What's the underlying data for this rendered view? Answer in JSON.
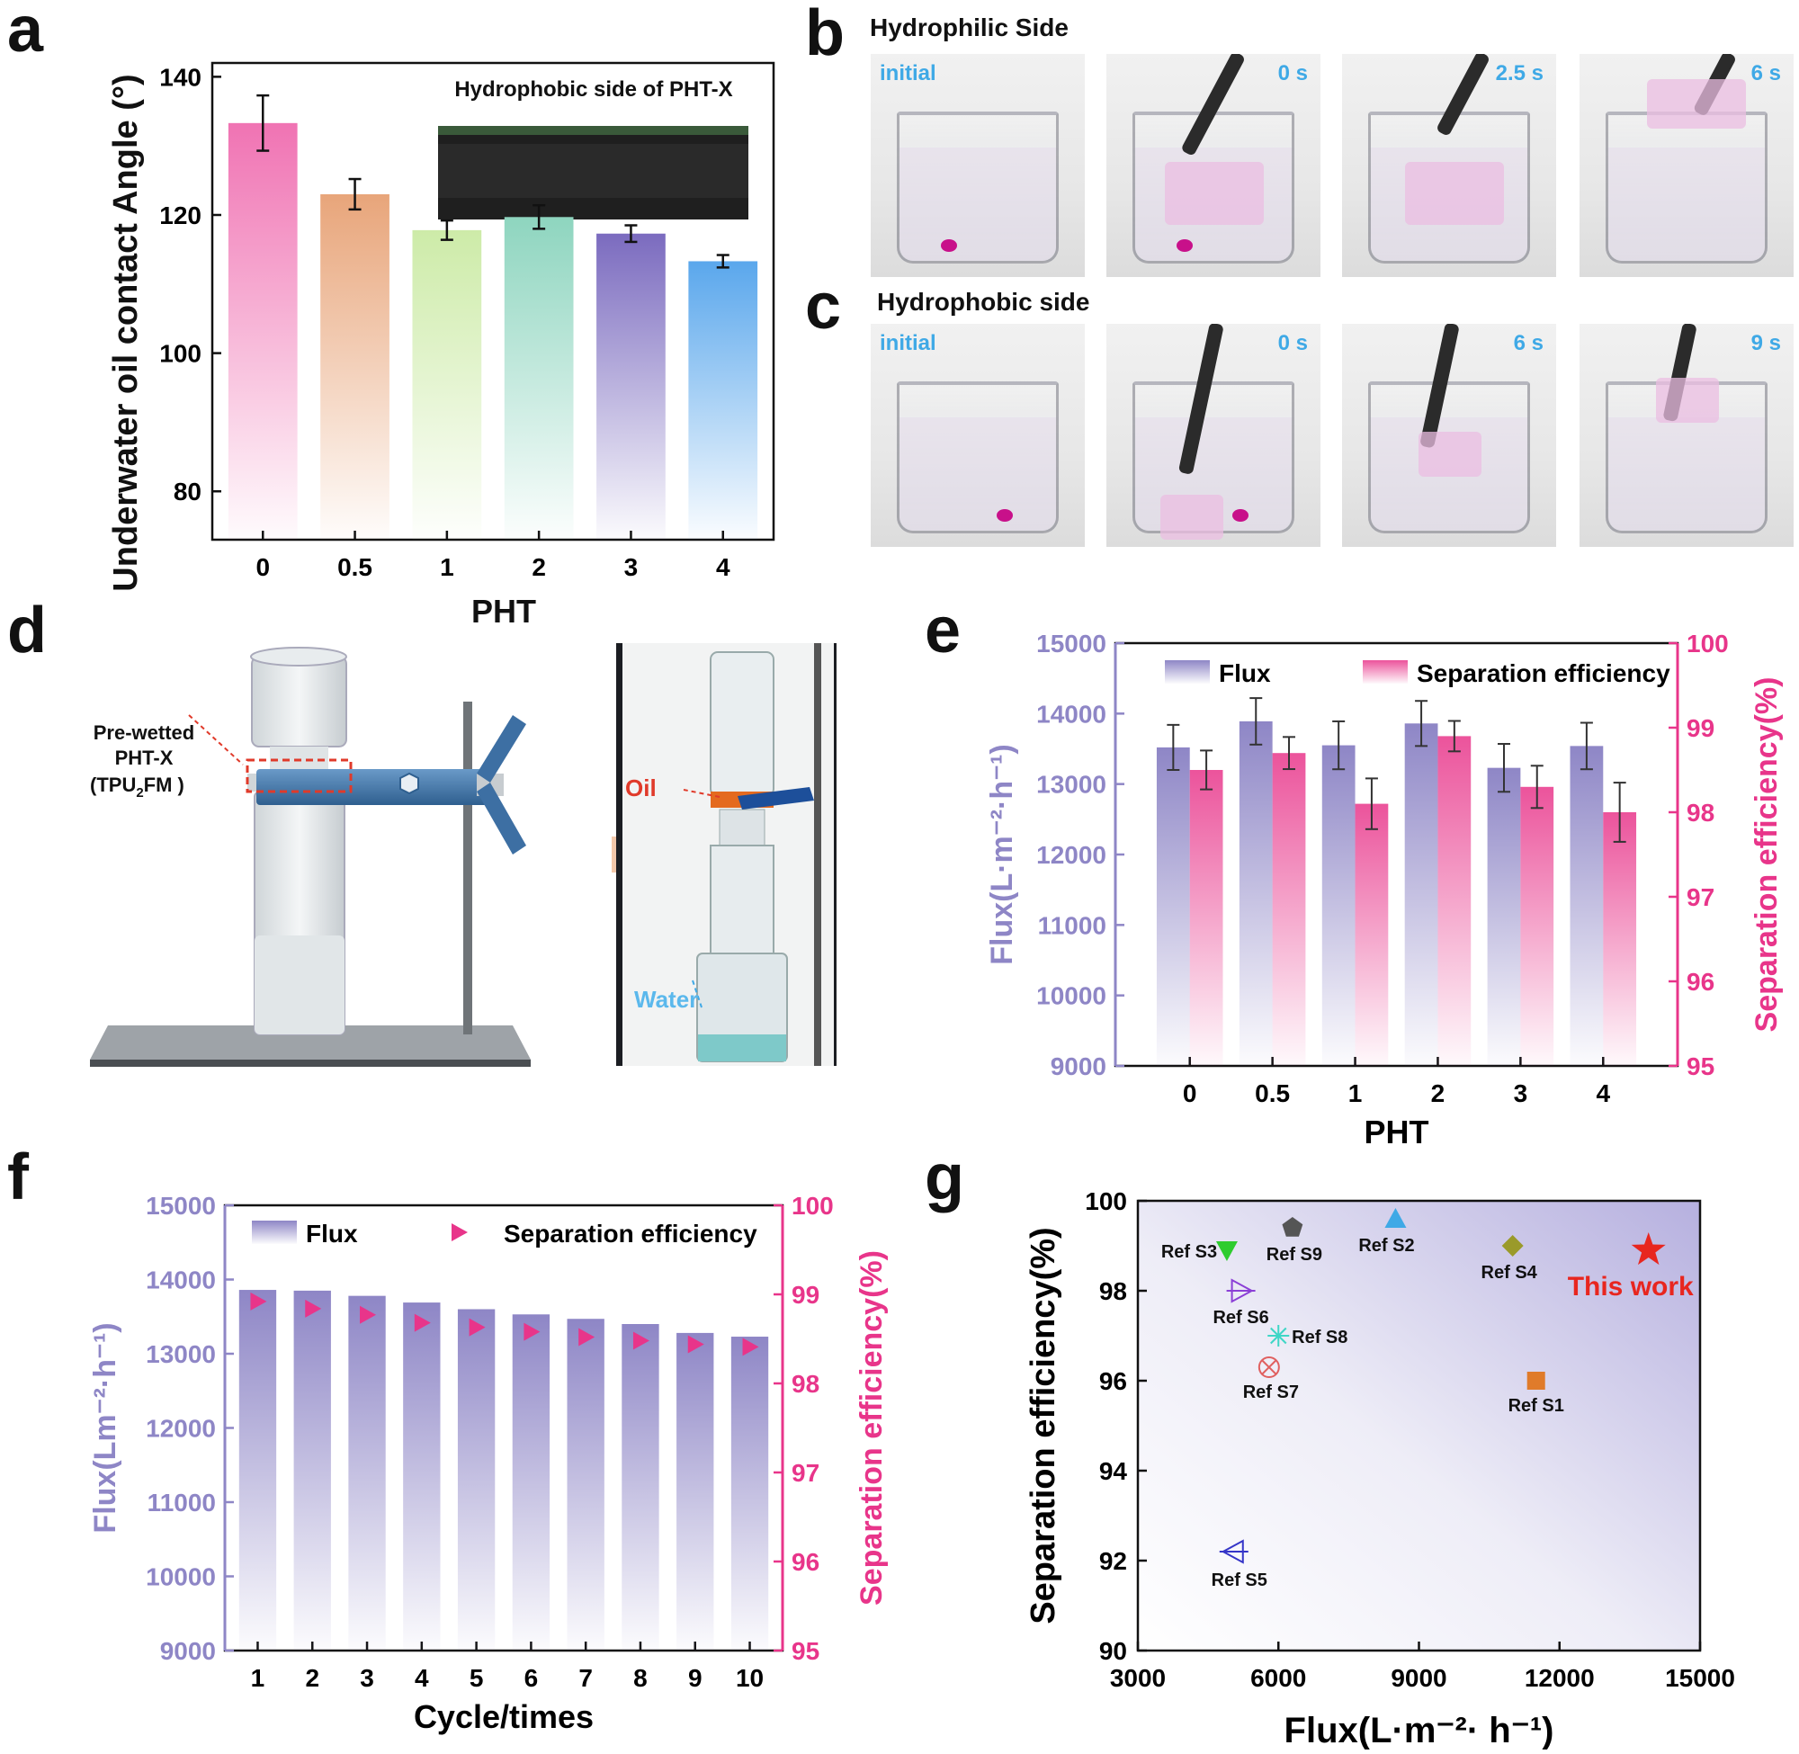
{
  "panels": {
    "a": "a",
    "b": "b",
    "c": "c",
    "d": "d",
    "e": "e",
    "f": "f",
    "g": "g"
  },
  "colors": {
    "flux": "#8e86c6",
    "efficiency": "#e8358a",
    "time_label": "#3fa9e6",
    "bars_a": [
      "#f073b3",
      "#e8a57a",
      "#cdeba8",
      "#8ed5bf",
      "#7b6bbf",
      "#5aa7ec"
    ]
  },
  "panel_b": {
    "title": "Hydrophilic Side",
    "labels": [
      "initial",
      "0 s",
      "2.5 s",
      "6 s"
    ]
  },
  "panel_c": {
    "title": "Hydrophobic side",
    "labels": [
      "initial",
      "0 s",
      "6 s",
      "9 s"
    ]
  },
  "panel_d": {
    "label_line1": "Pre-wetted",
    "label_line2": "PHT-X",
    "label_line3": "(TPU",
    "label_sub": "2",
    "label_line3_end": "FM )",
    "oil": "Oil",
    "water": "Water"
  },
  "chart_data": [
    {
      "id": "a",
      "type": "bar",
      "title": "",
      "inset_label": "Hydrophobic side of PHT-X",
      "xlabel": "PHT",
      "ylabel": "Underwater oil contact Angle (°)",
      "categories": [
        "0",
        "0.5",
        "1",
        "2",
        "3",
        "4"
      ],
      "values": [
        133.3,
        123.0,
        117.8,
        119.7,
        117.3,
        113.3
      ],
      "errors": [
        4.0,
        2.2,
        1.4,
        1.7,
        1.2,
        0.9
      ],
      "ylim": [
        73,
        142
      ],
      "yticks": [
        80,
        100,
        120,
        140
      ]
    },
    {
      "id": "e",
      "type": "bar",
      "xlabel": "PHT",
      "ylabel": "Flux(L·m⁻²·h⁻¹)",
      "ylabel2": "Separation efficiency(%)",
      "categories": [
        "0",
        "0.5",
        "1",
        "2",
        "3",
        "4"
      ],
      "legend": [
        "Flux",
        "Separation efficiency"
      ],
      "series": [
        {
          "name": "Flux",
          "axis": "left",
          "values": [
            13520,
            13890,
            13550,
            13860,
            13230,
            13540
          ],
          "errors": [
            320,
            330,
            340,
            320,
            340,
            330
          ]
        },
        {
          "name": "Separation efficiency",
          "axis": "right",
          "values": [
            98.5,
            98.7,
            98.1,
            98.9,
            98.3,
            98.0
          ],
          "errors": [
            0.23,
            0.19,
            0.3,
            0.18,
            0.25,
            0.35
          ]
        }
      ],
      "ylim": [
        9000,
        15000
      ],
      "ylim2": [
        95,
        100
      ],
      "yticks": [
        9000,
        10000,
        11000,
        12000,
        13000,
        14000,
        15000
      ],
      "yticks2": [
        95,
        96,
        97,
        98,
        99,
        100
      ]
    },
    {
      "id": "f",
      "type": "bar",
      "xlabel": "Cycle/times",
      "ylabel": "Flux(Lm⁻²·h⁻¹)",
      "ylabel2": "Separation efficiency(%)",
      "categories": [
        "1",
        "2",
        "3",
        "4",
        "5",
        "6",
        "7",
        "8",
        "9",
        "10"
      ],
      "legend": [
        "Flux",
        "Separation efficiency"
      ],
      "series": [
        {
          "name": "Flux",
          "axis": "left",
          "values": [
            13860,
            13850,
            13780,
            13690,
            13600,
            13530,
            13470,
            13400,
            13280,
            13230
          ]
        },
        {
          "name": "Separation efficiency",
          "axis": "right",
          "values": [
            98.92,
            98.84,
            98.77,
            98.68,
            98.63,
            98.58,
            98.52,
            98.48,
            98.44,
            98.41
          ]
        }
      ],
      "ylim": [
        9000,
        15000
      ],
      "ylim2": [
        95,
        100
      ],
      "yticks": [
        9000,
        10000,
        11000,
        12000,
        13000,
        14000,
        15000
      ],
      "yticks2": [
        95,
        96,
        97,
        98,
        99,
        100
      ]
    },
    {
      "id": "g",
      "type": "scatter",
      "xlabel": "Flux(L·m⁻²· h⁻¹)",
      "ylabel": "Separation efficiency(%)",
      "xlim": [
        3000,
        15000
      ],
      "ylim": [
        90,
        100
      ],
      "xticks": [
        3000,
        6000,
        9000,
        12000,
        15000
      ],
      "yticks": [
        90,
        92,
        94,
        96,
        98,
        100
      ],
      "points": [
        {
          "label": "Ref S1",
          "x": 11500,
          "y": 96.0,
          "marker": "square",
          "color": "#e07b2a"
        },
        {
          "label": "Ref S2",
          "x": 8500,
          "y": 99.6,
          "marker": "triangle-up",
          "color": "#3fa9e6"
        },
        {
          "label": "Ref S3",
          "x": 4900,
          "y": 98.9,
          "marker": "triangle-down",
          "color": "#2ecc2e"
        },
        {
          "label": "Ref S4",
          "x": 11000,
          "y": 99.0,
          "marker": "diamond",
          "color": "#9a9a2a"
        },
        {
          "label": "Ref S5",
          "x": 5050,
          "y": 92.2,
          "marker": "triangle-left",
          "color": "#3535c8"
        },
        {
          "label": "Ref S6",
          "x": 5200,
          "y": 98.0,
          "marker": "triangle-right",
          "color": "#8b3fd6"
        },
        {
          "label": "Ref S7",
          "x": 5800,
          "y": 96.3,
          "marker": "circle-x",
          "color": "#e06060"
        },
        {
          "label": "Ref S8",
          "x": 6000,
          "y": 97.0,
          "marker": "asterisk",
          "color": "#3fd6c6"
        },
        {
          "label": "Ref S9",
          "x": 6300,
          "y": 99.4,
          "marker": "pentagon",
          "color": "#555555"
        },
        {
          "label": "This work",
          "x": 13900,
          "y": 98.9,
          "marker": "star",
          "color": "#e8261f"
        }
      ]
    }
  ]
}
